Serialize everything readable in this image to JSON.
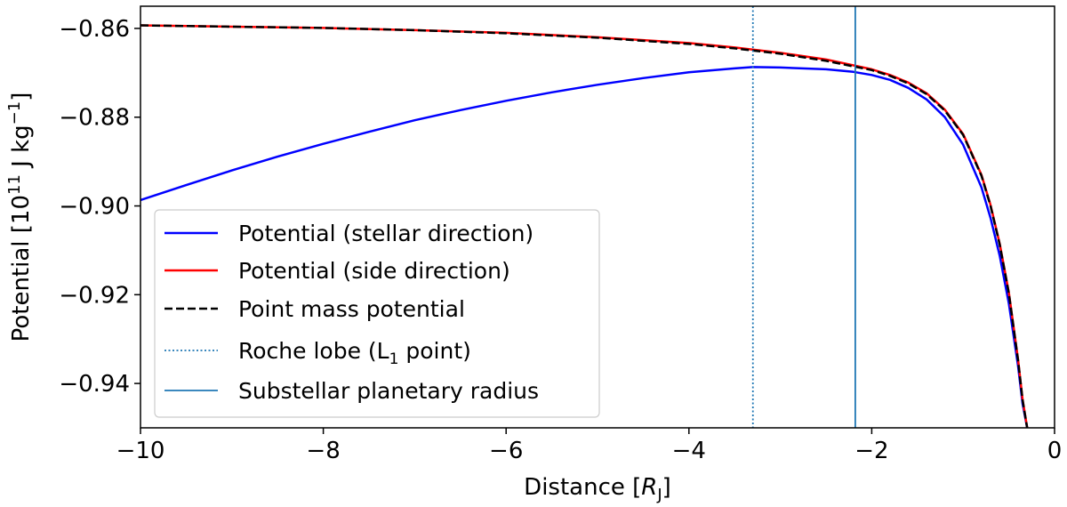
{
  "chart_data": {
    "type": "line",
    "xlabel": {
      "prefix": "Distance [",
      "var": "R",
      "sub": "J",
      "suffix": "]"
    },
    "ylabel": {
      "prefix": "Potential [10",
      "sup": "11",
      "mid": " J kg",
      "sup2": "−1",
      "suffix": "]"
    },
    "xlim": [
      -10,
      0
    ],
    "ylim": [
      -0.95,
      -0.855
    ],
    "xticks": [
      -10,
      -8,
      -6,
      -4,
      -2,
      0
    ],
    "xtick_labels": [
      "−10",
      "−8",
      "−6",
      "−4",
      "−2",
      "0"
    ],
    "yticks": [
      -0.86,
      -0.88,
      -0.9,
      -0.92,
      -0.94
    ],
    "ytick_labels": [
      "−0.86",
      "−0.88",
      "−0.90",
      "−0.92",
      "−0.94"
    ],
    "grid": false,
    "legend_placement": "lower-left",
    "series": [
      {
        "name": "Potential (stellar direction)",
        "color": "#0000ff",
        "style": "solid",
        "points": [
          [
            -10,
            -0.8987
          ],
          [
            -9.5,
            -0.8953
          ],
          [
            -9,
            -0.892
          ],
          [
            -8.5,
            -0.8889
          ],
          [
            -8,
            -0.886
          ],
          [
            -7.5,
            -0.8833
          ],
          [
            -7,
            -0.8807
          ],
          [
            -6.5,
            -0.8784
          ],
          [
            -6,
            -0.8763
          ],
          [
            -5.5,
            -0.8744
          ],
          [
            -5,
            -0.8727
          ],
          [
            -4.5,
            -0.8712
          ],
          [
            -4,
            -0.8699
          ],
          [
            -3.5,
            -0.869
          ],
          [
            -3.3,
            -0.8687
          ],
          [
            -3,
            -0.8688
          ],
          [
            -2.5,
            -0.8692
          ],
          [
            -2.2,
            -0.8698
          ],
          [
            -2,
            -0.8705
          ],
          [
            -1.8,
            -0.8716
          ],
          [
            -1.6,
            -0.8734
          ],
          [
            -1.4,
            -0.876
          ],
          [
            -1.2,
            -0.88
          ],
          [
            -1,
            -0.8862
          ],
          [
            -0.8,
            -0.8958
          ],
          [
            -0.7,
            -0.9027
          ],
          [
            -0.6,
            -0.9112
          ],
          [
            -0.5,
            -0.922
          ],
          [
            -0.4,
            -0.936
          ],
          [
            -0.35,
            -0.9445
          ],
          [
            -0.3,
            -0.95
          ]
        ]
      },
      {
        "name": "Potential (side direction)",
        "color": "#ff0000",
        "style": "solid",
        "points": [
          [
            -10,
            -0.8593
          ],
          [
            -9,
            -0.8596
          ],
          [
            -8,
            -0.8599
          ],
          [
            -7,
            -0.8604
          ],
          [
            -6,
            -0.861
          ],
          [
            -5,
            -0.862
          ],
          [
            -4,
            -0.8633
          ],
          [
            -3.5,
            -0.8643
          ],
          [
            -3,
            -0.8655
          ],
          [
            -2.5,
            -0.867
          ],
          [
            -2,
            -0.8692
          ],
          [
            -1.8,
            -0.8705
          ],
          [
            -1.6,
            -0.8722
          ],
          [
            -1.4,
            -0.8746
          ],
          [
            -1.2,
            -0.8783
          ],
          [
            -1,
            -0.8838
          ],
          [
            -0.8,
            -0.893
          ],
          [
            -0.7,
            -0.8998
          ],
          [
            -0.6,
            -0.9085
          ],
          [
            -0.5,
            -0.9195
          ],
          [
            -0.4,
            -0.9345
          ],
          [
            -0.35,
            -0.9435
          ],
          [
            -0.3,
            -0.95
          ]
        ]
      },
      {
        "name": "Point mass potential",
        "color": "#000000",
        "style": "dashed",
        "points": [
          [
            -10,
            -0.8593
          ],
          [
            -9,
            -0.8596
          ],
          [
            -8,
            -0.8599
          ],
          [
            -7,
            -0.8604
          ],
          [
            -6,
            -0.8611
          ],
          [
            -5,
            -0.8621
          ],
          [
            -4,
            -0.8635
          ],
          [
            -3.5,
            -0.8645
          ],
          [
            -3,
            -0.8657
          ],
          [
            -2.5,
            -0.8673
          ],
          [
            -2,
            -0.8694
          ],
          [
            -1.8,
            -0.8707
          ],
          [
            -1.6,
            -0.8724
          ],
          [
            -1.4,
            -0.8748
          ],
          [
            -1.2,
            -0.8785
          ],
          [
            -1,
            -0.884
          ],
          [
            -0.8,
            -0.8932
          ],
          [
            -0.7,
            -0.9
          ],
          [
            -0.6,
            -0.9087
          ],
          [
            -0.5,
            -0.9197
          ],
          [
            -0.4,
            -0.9347
          ],
          [
            -0.35,
            -0.9437
          ],
          [
            -0.3,
            -0.95
          ]
        ]
      }
    ],
    "vlines": [
      {
        "name": "Roche lobe (L₁ point)",
        "legend_prefix": "Roche lobe (L",
        "legend_sub": "1",
        "legend_suffix": " point)",
        "x": -3.3,
        "color": "#1f77b4",
        "style": "dotted"
      },
      {
        "name": "Substellar planetary radius",
        "x": -2.18,
        "color": "#1f77b4",
        "style": "solid"
      }
    ]
  }
}
